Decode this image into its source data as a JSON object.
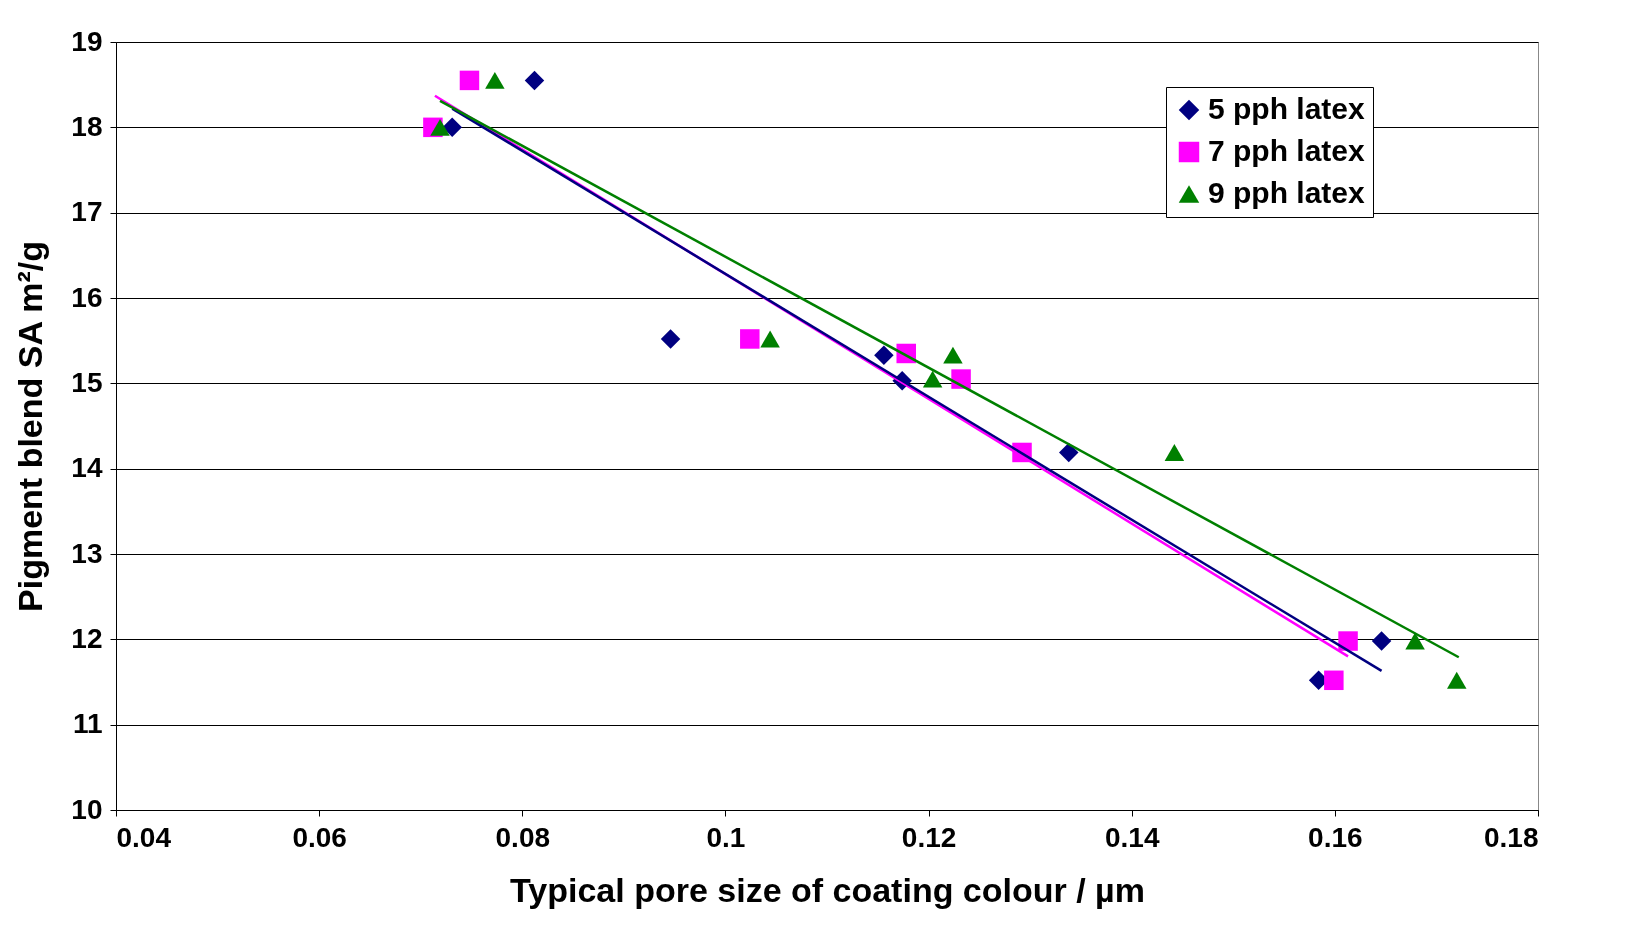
{
  "chart_data": {
    "type": "scatter",
    "xlabel": "Typical pore size of coating colour / µm",
    "ylabel": "Pigment blend SA m²/g",
    "xlim": [
      0.04,
      0.18
    ],
    "xticks": [
      0.04,
      0.06,
      0.08,
      0.1,
      0.12,
      0.14,
      0.16,
      0.18
    ],
    "ylim": [
      10,
      19
    ],
    "yticks": [
      10,
      11,
      12,
      13,
      14,
      15,
      16,
      17,
      18,
      19
    ],
    "grid": "y",
    "legend": "top right",
    "series": [
      {
        "name": "5 pph latex",
        "color": "#000080",
        "marker": "diamond",
        "x": [
          0.0731,
          0.0812,
          0.0946,
          0.1156,
          0.1174,
          0.1338,
          0.1584,
          0.1646
        ],
        "values": [
          18.0,
          18.55,
          15.52,
          15.33,
          15.03,
          14.19,
          11.52,
          11.98
        ]
      },
      {
        "name": "7 pph latex",
        "color": "#ff00ff",
        "marker": "square",
        "x": [
          0.0712,
          0.0748,
          0.1024,
          0.1178,
          0.1232,
          0.1292,
          0.1599,
          0.1613
        ],
        "values": [
          18.0,
          18.55,
          15.52,
          15.35,
          15.05,
          14.19,
          11.52,
          11.98
        ]
      },
      {
        "name": "9 pph latex",
        "color": "#008000",
        "marker": "triangle",
        "x": [
          0.0719,
          0.0773,
          0.1044,
          0.1204,
          0.1224,
          0.1442,
          0.1679,
          0.172
        ],
        "values": [
          18.0,
          18.55,
          15.52,
          15.05,
          15.33,
          14.19,
          11.98,
          11.52
        ]
      },
      {
        "type": "line",
        "color": "#ff00ff",
        "marker": "none",
        "x": [
          0.0714,
          0.1613
        ],
        "values": [
          18.37,
          11.8
        ]
      },
      {
        "type": "line",
        "color": "#000080",
        "marker": "none",
        "x": [
          0.0731,
          0.1646
        ],
        "values": [
          18.22,
          11.63
        ]
      },
      {
        "type": "line",
        "color": "#008000",
        "marker": "none",
        "x": [
          0.0719,
          0.1722
        ],
        "values": [
          18.31,
          11.79
        ]
      }
    ]
  }
}
